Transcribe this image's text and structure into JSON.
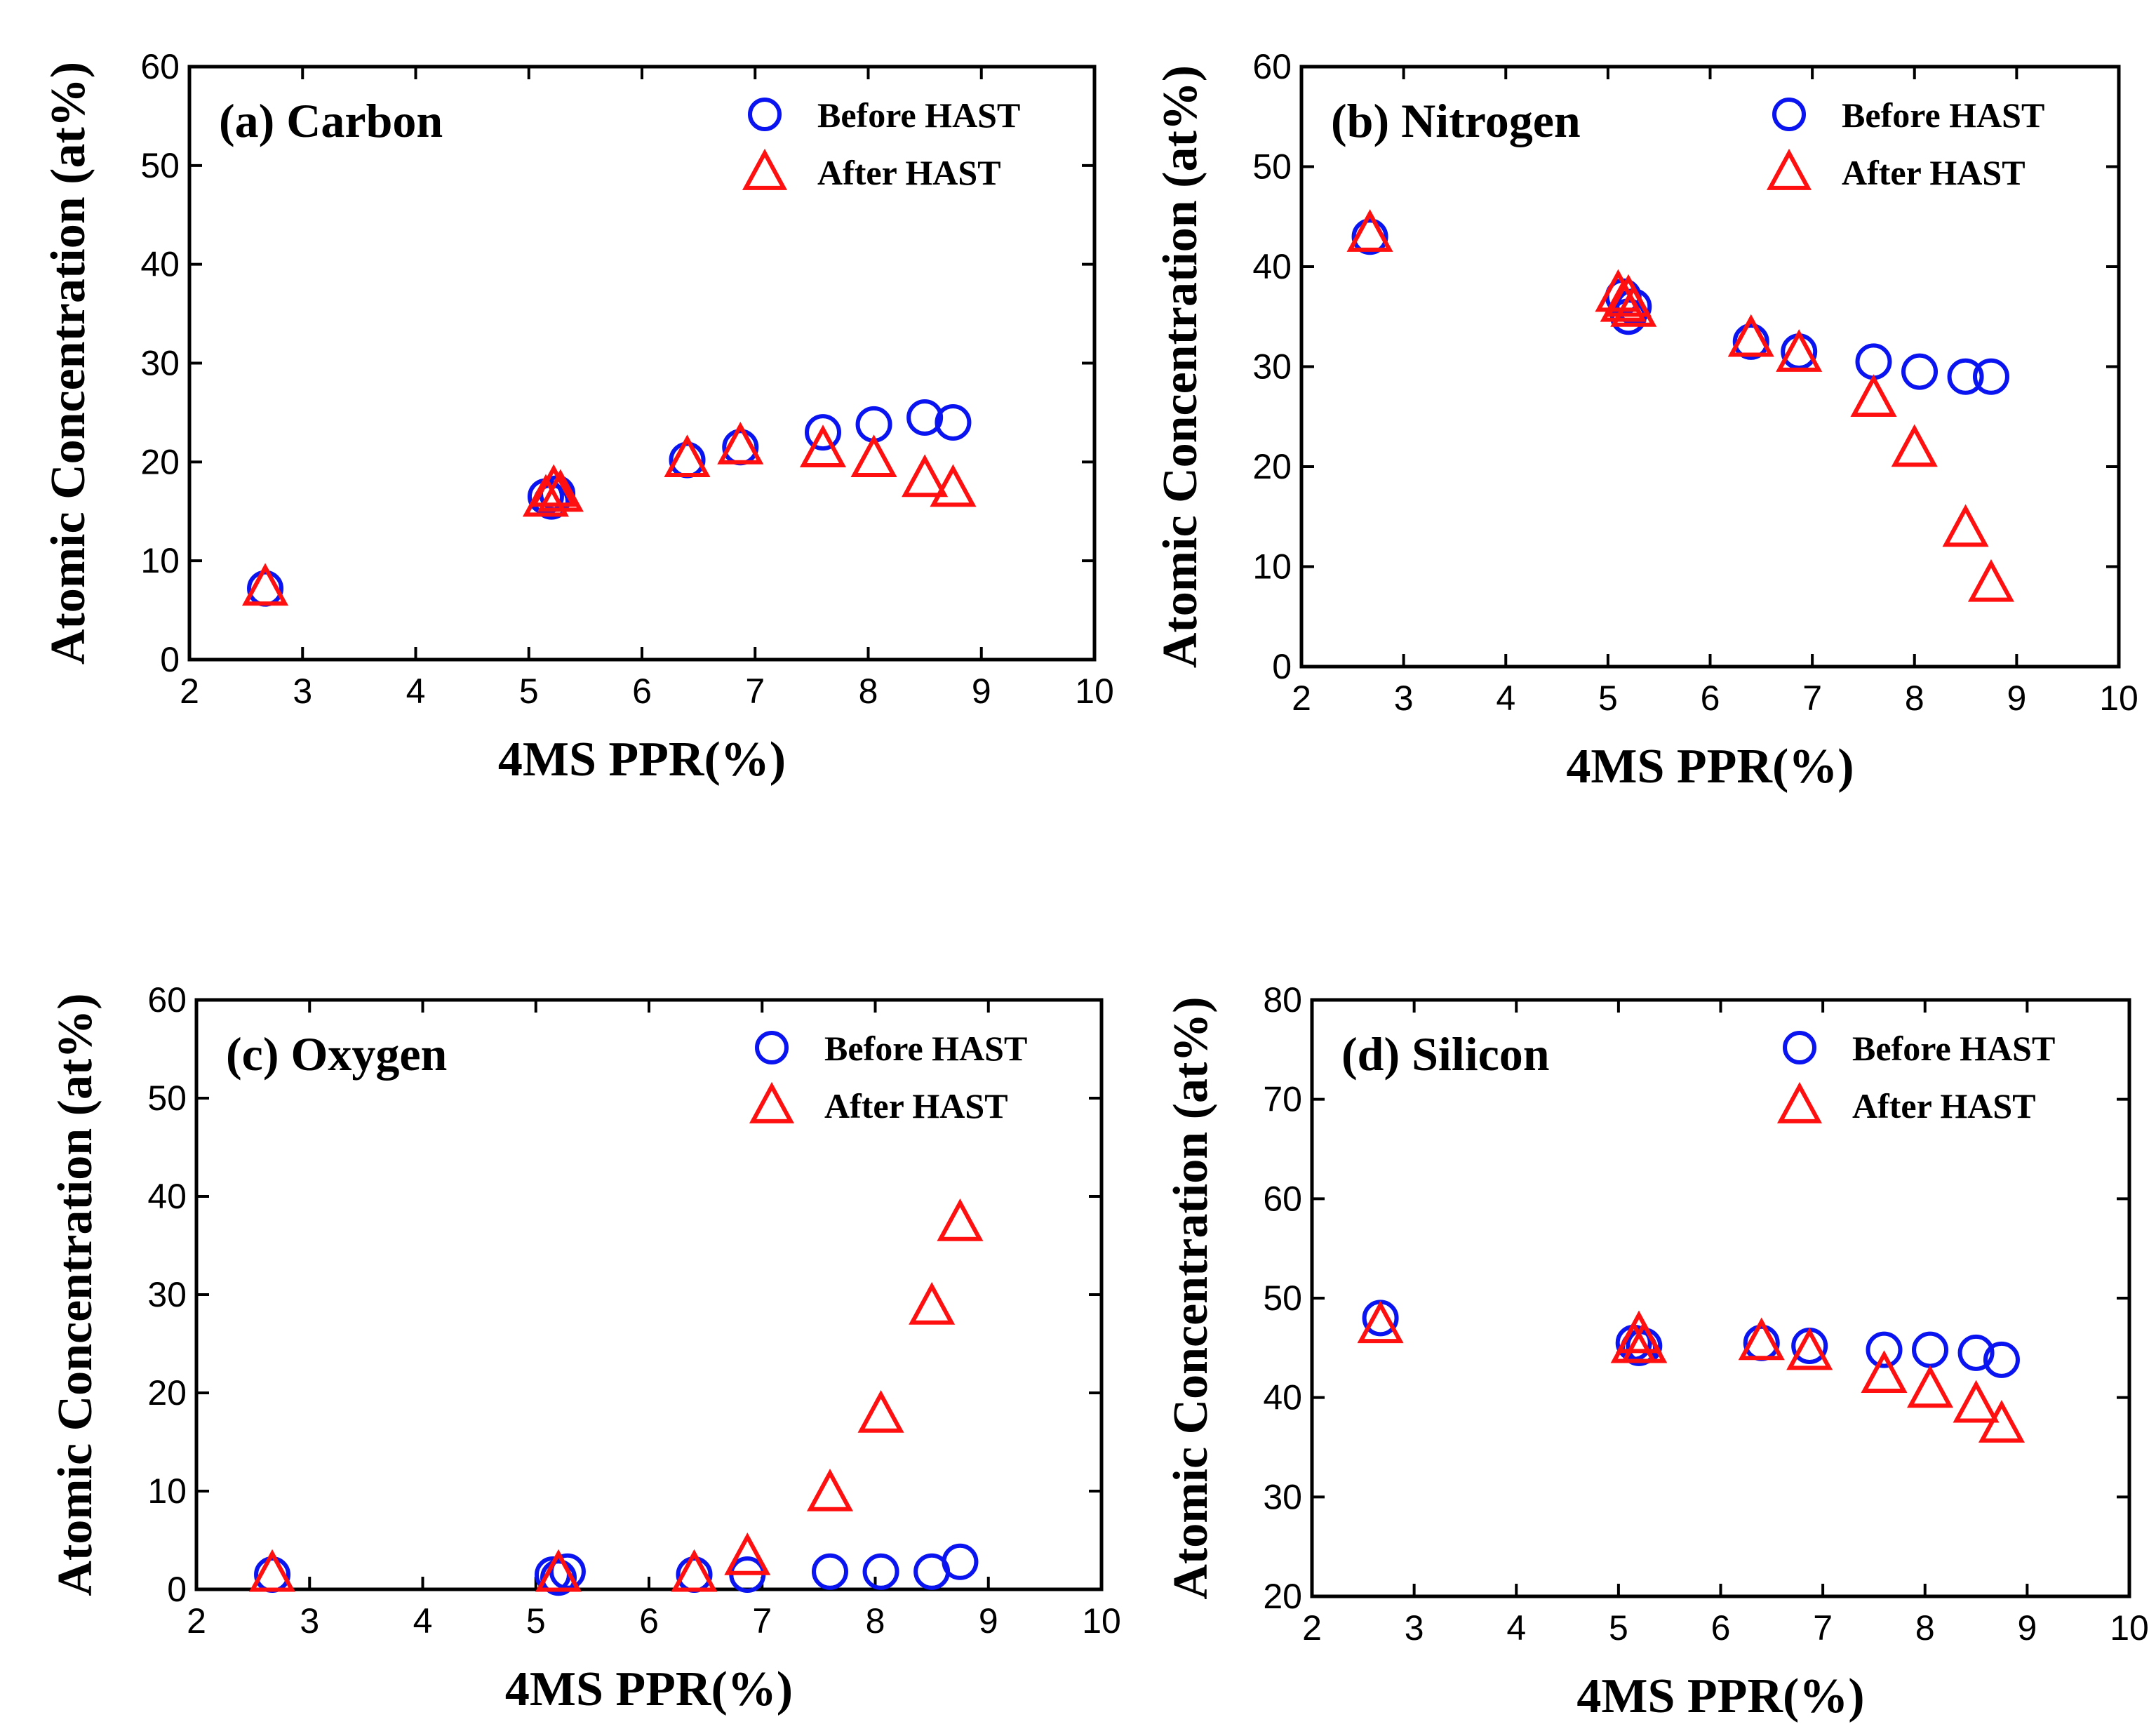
{
  "chart_data": [
    {
      "type": "scatter",
      "title": "(a) Carbon",
      "xlabel": "4MS PPR(%)",
      "ylabel": "Atomic Concentration (at%)",
      "xlim": [
        2,
        10
      ],
      "ylim": [
        0,
        60
      ],
      "xticks": [
        "2",
        "3",
        "4",
        "5",
        "6",
        "7",
        "8",
        "9",
        "10"
      ],
      "yticks": [
        "0",
        "10",
        "20",
        "30",
        "40",
        "50",
        "60"
      ],
      "legend": "top-right",
      "series": [
        {
          "name": "Before HAST",
          "marker": "circle",
          "color": "#0a14f0",
          "x": [
            2.67,
            5.15,
            5.2,
            5.25,
            6.4,
            6.87,
            7.6,
            8.05,
            8.5,
            8.75
          ],
          "y": [
            7.2,
            16.5,
            16.0,
            16.8,
            20.2,
            21.5,
            23.0,
            23.8,
            24.5,
            24.0
          ]
        },
        {
          "name": "After HAST",
          "marker": "triangle",
          "color": "#ff1010",
          "x": [
            2.67,
            5.15,
            5.22,
            5.28,
            6.4,
            6.87,
            7.6,
            8.05,
            8.5,
            8.75
          ],
          "y": [
            7.5,
            16.5,
            17.5,
            17.0,
            20.5,
            21.8,
            21.5,
            20.5,
            18.5,
            17.5
          ]
        }
      ]
    },
    {
      "type": "scatter",
      "title": "(b) Nitrogen",
      "xlabel": "4MS PPR(%)",
      "ylabel": "Atomic Concentration (at%)",
      "xlim": [
        2,
        10
      ],
      "ylim": [
        0,
        60
      ],
      "xticks": [
        "2",
        "3",
        "4",
        "5",
        "6",
        "7",
        "8",
        "9",
        "10"
      ],
      "yticks": [
        "0",
        "10",
        "20",
        "30",
        "40",
        "50",
        "60"
      ],
      "legend": "top-right",
      "series": [
        {
          "name": "Before HAST",
          "marker": "circle",
          "color": "#0a14f0",
          "x": [
            2.67,
            5.15,
            5.2,
            5.25,
            6.4,
            6.87,
            7.6,
            8.05,
            8.5,
            8.75
          ],
          "y": [
            43.0,
            37.0,
            35.0,
            36.0,
            32.5,
            31.5,
            30.5,
            29.5,
            29.0,
            29.0
          ]
        },
        {
          "name": "After HAST",
          "marker": "triangle",
          "color": "#ff1010",
          "x": [
            2.67,
            5.1,
            5.15,
            5.2,
            5.25,
            6.4,
            6.87,
            7.6,
            8.0,
            8.5,
            8.75
          ],
          "y": [
            43.5,
            37.5,
            36.5,
            37.0,
            36.0,
            33.0,
            31.5,
            27.0,
            22.0,
            14.0,
            8.5
          ]
        }
      ]
    },
    {
      "type": "scatter",
      "title": "(c) Oxygen",
      "xlabel": "4MS PPR(%)",
      "ylabel": "Atomic Concentration (at%)",
      "xlim": [
        2,
        10
      ],
      "ylim": [
        0,
        60
      ],
      "xticks": [
        "2",
        "3",
        "4",
        "5",
        "6",
        "7",
        "8",
        "9",
        "10"
      ],
      "yticks": [
        "0",
        "10",
        "20",
        "30",
        "40",
        "50",
        "60"
      ],
      "legend": "top-right",
      "series": [
        {
          "name": "Before HAST",
          "marker": "circle",
          "color": "#0a14f0",
          "x": [
            2.67,
            5.15,
            5.2,
            5.28,
            6.4,
            6.87,
            7.6,
            8.05,
            8.5,
            8.75
          ],
          "y": [
            1.5,
            1.5,
            1.2,
            1.8,
            1.5,
            1.5,
            1.8,
            1.8,
            1.8,
            2.8
          ]
        },
        {
          "name": "After HAST",
          "marker": "triangle",
          "color": "#ff1010",
          "x": [
            2.67,
            5.2,
            6.4,
            6.87,
            7.6,
            8.05,
            8.5,
            8.75
          ],
          "y": [
            1.8,
            1.8,
            1.8,
            3.5,
            10.0,
            18.0,
            29.0,
            37.5
          ]
        }
      ]
    },
    {
      "type": "scatter",
      "title": "(d) Silicon",
      "xlabel": "4MS PPR(%)",
      "ylabel": "Atomic Concentration (at%)",
      "xlim": [
        2,
        10
      ],
      "ylim": [
        20,
        80
      ],
      "xticks": [
        "2",
        "3",
        "4",
        "5",
        "6",
        "7",
        "8",
        "9",
        "10"
      ],
      "yticks": [
        "20",
        "30",
        "40",
        "50",
        "60",
        "70",
        "80"
      ],
      "legend": "top-right",
      "series": [
        {
          "name": "Before HAST",
          "marker": "circle",
          "color": "#0a14f0",
          "x": [
            2.67,
            5.15,
            5.2,
            5.25,
            6.4,
            6.87,
            7.6,
            8.05,
            8.5,
            8.75
          ],
          "y": [
            48.0,
            45.5,
            45.0,
            45.2,
            45.5,
            45.2,
            44.8,
            44.8,
            44.5,
            43.8
          ]
        },
        {
          "name": "After HAST",
          "marker": "triangle",
          "color": "#ff1010",
          "x": [
            2.67,
            5.15,
            5.2,
            5.25,
            6.4,
            6.87,
            7.6,
            8.05,
            8.5,
            8.75
          ],
          "y": [
            47.5,
            45.5,
            46.5,
            45.5,
            45.8,
            44.8,
            42.5,
            41.0,
            39.5,
            37.5
          ]
        }
      ]
    }
  ]
}
